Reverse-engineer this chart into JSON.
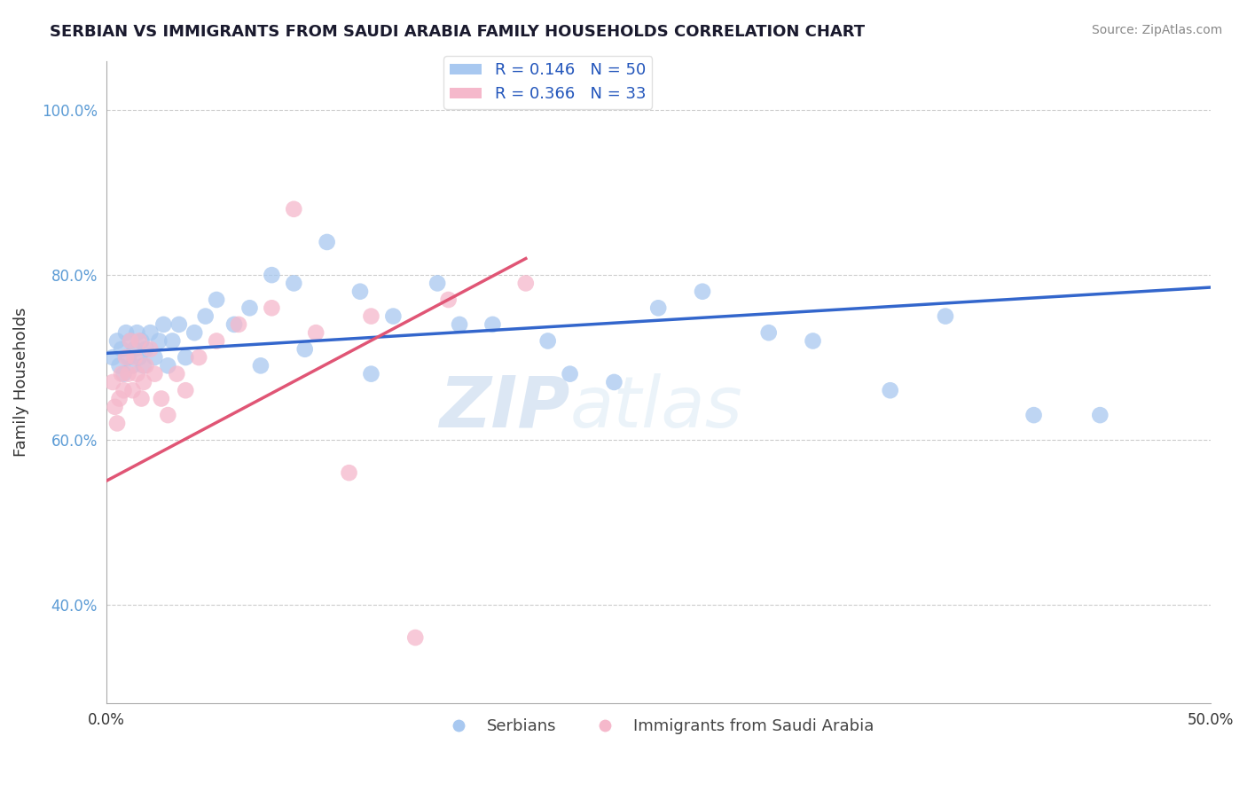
{
  "title": "SERBIAN VS IMMIGRANTS FROM SAUDI ARABIA FAMILY HOUSEHOLDS CORRELATION CHART",
  "source": "Source: ZipAtlas.com",
  "ylabel": "Family Households",
  "xlim": [
    0.0,
    50.0
  ],
  "ylim": [
    28.0,
    106.0
  ],
  "yticks": [
    40.0,
    60.0,
    80.0,
    100.0
  ],
  "ytick_labels": [
    "40.0%",
    "60.0%",
    "80.0%",
    "100.0%"
  ],
  "xticks": [
    0.0,
    10.0,
    20.0,
    30.0,
    40.0,
    50.0
  ],
  "xtick_labels": [
    "0.0%",
    "",
    "",
    "",
    "",
    "50.0%"
  ],
  "blue_R": 0.146,
  "blue_N": 50,
  "pink_R": 0.366,
  "pink_N": 33,
  "blue_color": "#A8C8F0",
  "pink_color": "#F5B8CB",
  "blue_line_color": "#3366CC",
  "pink_line_color": "#E05575",
  "serbians_label": "Serbians",
  "immigrants_label": "Immigrants from Saudi Arabia",
  "watermark_zip": "ZIP",
  "watermark_atlas": "atlas",
  "blue_x": [
    0.3,
    0.5,
    0.6,
    0.7,
    0.8,
    0.9,
    1.0,
    1.1,
    1.2,
    1.3,
    1.4,
    1.5,
    1.6,
    1.7,
    1.8,
    2.0,
    2.2,
    2.4,
    2.6,
    2.8,
    3.0,
    3.3,
    3.6,
    4.0,
    4.5,
    5.0,
    5.8,
    6.5,
    7.5,
    8.5,
    10.0,
    11.5,
    13.0,
    15.0,
    17.5,
    20.0,
    23.0,
    27.0,
    32.0,
    38.0,
    45.0,
    7.0,
    9.0,
    12.0,
    16.0,
    21.0,
    25.0,
    30.0,
    35.5,
    42.0
  ],
  "blue_y": [
    70.0,
    72.0,
    69.0,
    71.0,
    68.0,
    73.0,
    70.0,
    72.0,
    69.0,
    71.0,
    73.0,
    70.0,
    72.0,
    69.0,
    71.0,
    73.0,
    70.0,
    72.0,
    74.0,
    69.0,
    72.0,
    74.0,
    70.0,
    73.0,
    75.0,
    77.0,
    74.0,
    76.0,
    80.0,
    79.0,
    84.0,
    78.0,
    75.0,
    79.0,
    74.0,
    72.0,
    67.0,
    78.0,
    72.0,
    75.0,
    63.0,
    69.0,
    71.0,
    68.0,
    74.0,
    68.0,
    76.0,
    73.0,
    66.0,
    63.0
  ],
  "pink_x": [
    0.3,
    0.4,
    0.5,
    0.6,
    0.7,
    0.8,
    0.9,
    1.0,
    1.1,
    1.2,
    1.3,
    1.4,
    1.5,
    1.6,
    1.7,
    1.8,
    2.0,
    2.2,
    2.5,
    2.8,
    3.2,
    3.6,
    4.2,
    5.0,
    6.0,
    7.5,
    9.5,
    12.0,
    15.5,
    19.0,
    8.5,
    11.0,
    14.0
  ],
  "pink_y": [
    67.0,
    64.0,
    62.0,
    65.0,
    68.0,
    66.0,
    70.0,
    68.0,
    72.0,
    66.0,
    70.0,
    68.0,
    72.0,
    65.0,
    67.0,
    69.0,
    71.0,
    68.0,
    65.0,
    63.0,
    68.0,
    66.0,
    70.0,
    72.0,
    74.0,
    76.0,
    73.0,
    75.0,
    77.0,
    79.0,
    88.0,
    56.0,
    36.0
  ],
  "blue_trend_x0": 0.0,
  "blue_trend_y0": 70.5,
  "blue_trend_x1": 50.0,
  "blue_trend_y1": 78.5,
  "pink_trend_x0": 0.0,
  "pink_trend_y0": 55.0,
  "pink_trend_x1": 19.0,
  "pink_trend_y1": 82.0
}
